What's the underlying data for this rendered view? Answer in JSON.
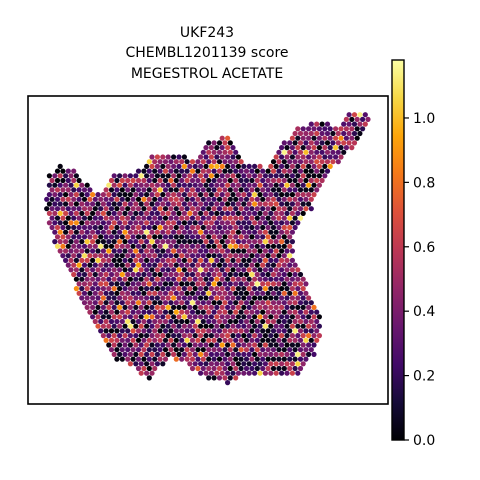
{
  "chart_data": {
    "type": "heatmap",
    "title_lines": [
      "UKF243",
      "CHEMBL1201139 score",
      "MEGESTROL ACETATE"
    ],
    "xlabel": "",
    "ylabel": "",
    "grid": false,
    "colormap": "inferno",
    "colorbar": {
      "position": "right",
      "vmin": 0.0,
      "vmax": 1.18,
      "ticks": [
        0.0,
        0.2,
        0.4,
        0.6,
        0.8,
        1.0
      ],
      "tick_labels": [
        "0.0",
        "0.2",
        "0.4",
        "0.6",
        "0.8",
        "1.0"
      ]
    },
    "spot_value_distribution": {
      "typical_range": [
        0.2,
        0.6
      ],
      "min": 0.0,
      "max": 1.18
    }
  }
}
